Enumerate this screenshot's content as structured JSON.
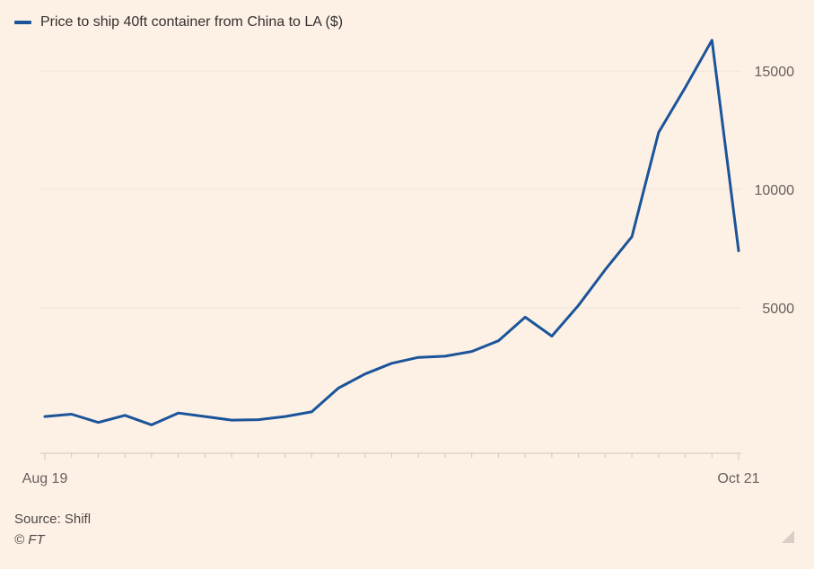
{
  "source": "Source: Shifl",
  "credit": "© FT",
  "colors": {
    "background": "#fdf1e6",
    "line": "#1b5499",
    "grid": "#ece2d8",
    "axis": "#cfc6bd",
    "text": "#66605c"
  },
  "chart_data": {
    "type": "line",
    "title": "",
    "xlabel": "",
    "ylabel": "",
    "series": [
      {
        "name": "Price to ship 40ft container from China to LA ($)",
        "values": [
          400,
          500,
          150,
          450,
          50,
          550,
          400,
          250,
          270,
          400,
          600,
          1600,
          2200,
          2650,
          2900,
          2950,
          3150,
          3600,
          4600,
          3800,
          5100,
          6600,
          8000,
          12400,
          14300,
          16300,
          7400
        ]
      }
    ],
    "x_tick_labels": [
      "Aug 19",
      "Oct 21"
    ],
    "y_ticks": [
      5000,
      10000,
      15000
    ],
    "y_tick_labels": [
      "5000",
      "10000",
      "15000"
    ],
    "ylim": [
      -1150,
      18000
    ],
    "grid": true,
    "legend": "top-left"
  }
}
